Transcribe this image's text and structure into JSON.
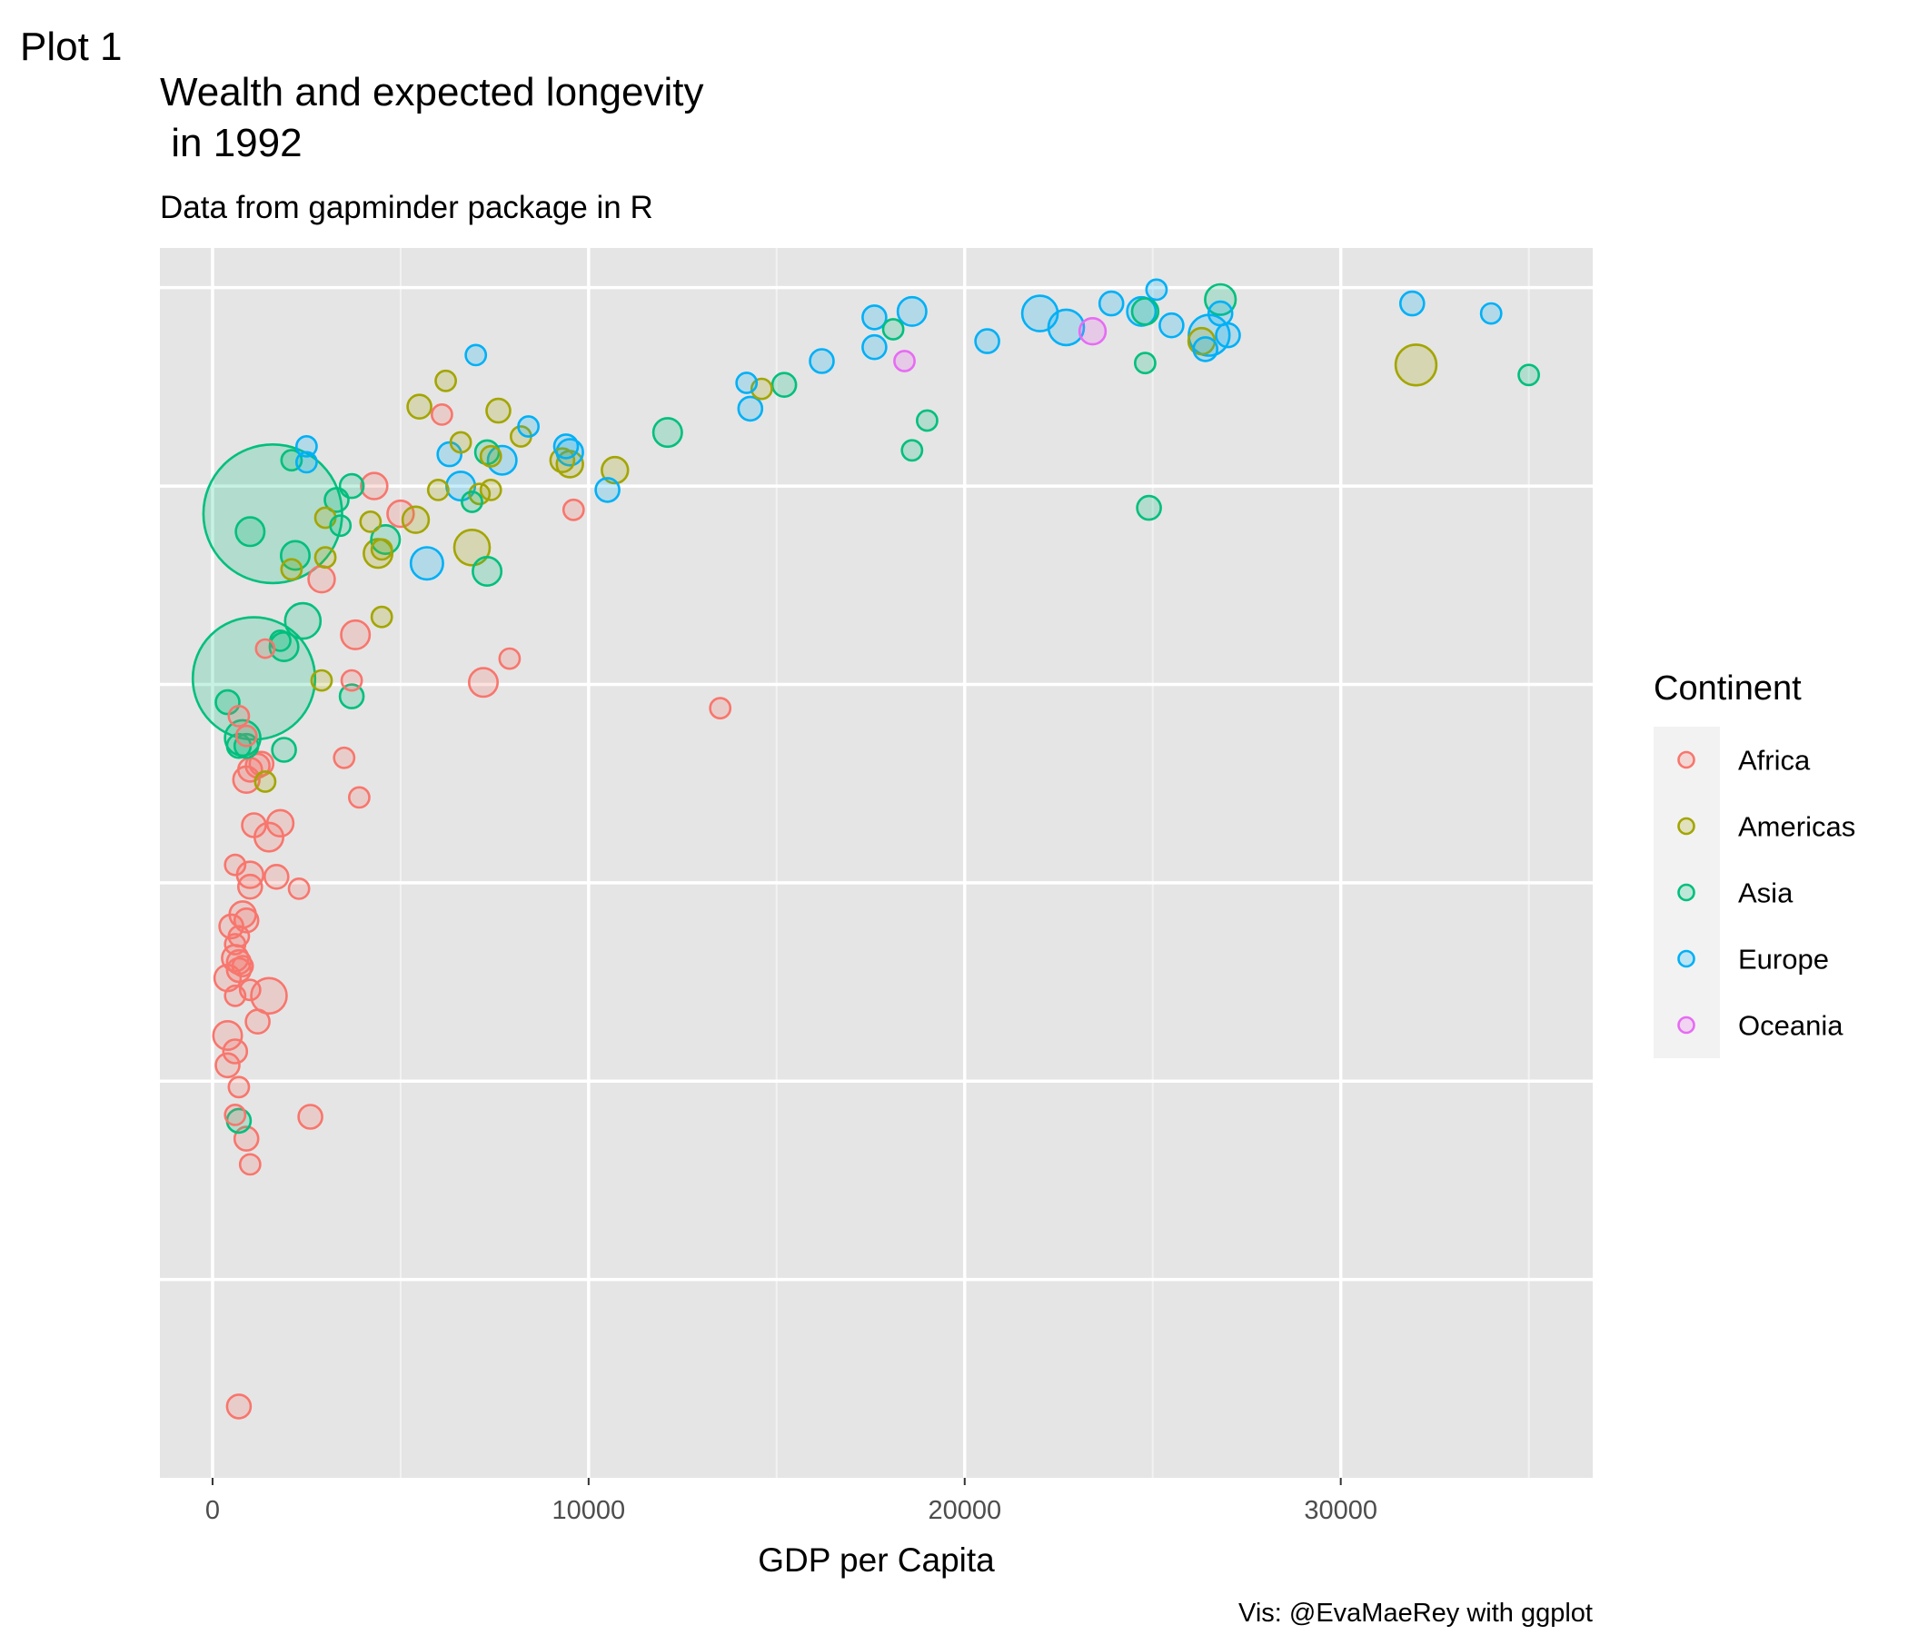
{
  "plot_tag": "Plot 1",
  "chart_data": {
    "type": "scatter",
    "title_line1": "Wealth and expected longevity",
    "title_line2": " in 1992",
    "subtitle": "Data from gapminder package in R",
    "xlabel": "GDP per Capita",
    "ylabel": "",
    "caption": "Vis: @EvaMaeRey with ggplot",
    "xlim": [
      -1400,
      36700
    ],
    "ylim": [
      20,
      82
    ],
    "x_ticks": [
      0,
      10000,
      20000,
      30000
    ],
    "x_tick_labels": [
      "0",
      "10000",
      "20000",
      "30000"
    ],
    "y_gridlines": [
      30,
      40,
      50,
      60,
      70,
      80
    ],
    "y_tick_labels_shown": false,
    "grid": true,
    "size_encodes": "population (millions, approximate)",
    "legend": {
      "title": "Continent",
      "position": "right",
      "entries": [
        "Africa",
        "Americas",
        "Asia",
        "Europe",
        "Oceania"
      ]
    },
    "colors": {
      "Africa": "#F8766D",
      "Americas": "#A3A500",
      "Asia": "#00BF7D",
      "Europe": "#00B0F6",
      "Oceania": "#E76BF3"
    },
    "series": [
      {
        "name": "Africa",
        "points": [
          [
            4300,
            70.0,
            15
          ],
          [
            6100,
            73.6,
            5
          ],
          [
            9600,
            68.8,
            5
          ],
          [
            2900,
            65.3,
            15
          ],
          [
            5000,
            68.6,
            15
          ],
          [
            3800,
            62.5,
            20
          ],
          [
            1400,
            61.8,
            3
          ],
          [
            3700,
            60.2,
            5
          ],
          [
            7200,
            60.1,
            20
          ],
          [
            7900,
            61.3,
            5
          ],
          [
            13500,
            58.8,
            5
          ],
          [
            700,
            58.4,
            5
          ],
          [
            900,
            57.4,
            5
          ],
          [
            1300,
            56.0,
            10
          ],
          [
            1200,
            55.9,
            10
          ],
          [
            1000,
            55.7,
            10
          ],
          [
            900,
            55.2,
            15
          ],
          [
            3500,
            56.3,
            5
          ],
          [
            3900,
            54.3,
            5
          ],
          [
            1100,
            52.9,
            10
          ],
          [
            1800,
            53.0,
            15
          ],
          [
            1500,
            52.3,
            20
          ],
          [
            600,
            50.9,
            5
          ],
          [
            1000,
            50.4,
            15
          ],
          [
            1700,
            50.3,
            10
          ],
          [
            1000,
            49.8,
            10
          ],
          [
            2300,
            49.7,
            5
          ],
          [
            800,
            48.4,
            15
          ],
          [
            900,
            48.1,
            10
          ],
          [
            500,
            47.8,
            10
          ],
          [
            700,
            47.3,
            5
          ],
          [
            600,
            46.9,
            5
          ],
          [
            600,
            46.2,
            15
          ],
          [
            700,
            46.0,
            10
          ],
          [
            800,
            45.8,
            5
          ],
          [
            700,
            45.6,
            10
          ],
          [
            400,
            45.2,
            15
          ],
          [
            1000,
            44.6,
            5
          ],
          [
            600,
            44.3,
            5
          ],
          [
            1500,
            44.3,
            40
          ],
          [
            1200,
            43.0,
            10
          ],
          [
            400,
            42.3,
            20
          ],
          [
            600,
            41.5,
            10
          ],
          [
            400,
            40.8,
            10
          ],
          [
            700,
            39.7,
            5
          ],
          [
            600,
            38.3,
            5
          ],
          [
            2600,
            38.2,
            10
          ],
          [
            900,
            37.1,
            10
          ],
          [
            1000,
            35.8,
            5
          ],
          [
            700,
            23.6,
            10
          ]
        ]
      },
      {
        "name": "Americas",
        "points": [
          [
            6200,
            75.3,
            5
          ],
          [
            5500,
            74.0,
            10
          ],
          [
            7600,
            73.8,
            10
          ],
          [
            8200,
            72.5,
            5
          ],
          [
            6600,
            72.2,
            5
          ],
          [
            9300,
            71.3,
            10
          ],
          [
            9500,
            71.1,
            15
          ],
          [
            7400,
            71.5,
            5
          ],
          [
            10700,
            70.8,
            15
          ],
          [
            6000,
            69.8,
            5
          ],
          [
            7100,
            69.6,
            5
          ],
          [
            7400,
            69.8,
            5
          ],
          [
            3000,
            68.4,
            5
          ],
          [
            4200,
            68.2,
            5
          ],
          [
            5400,
            68.3,
            15
          ],
          [
            6900,
            66.9,
            40
          ],
          [
            4400,
            66.6,
            20
          ],
          [
            4500,
            66.8,
            5
          ],
          [
            3000,
            66.4,
            5
          ],
          [
            2100,
            65.8,
            5
          ],
          [
            4500,
            63.4,
            5
          ],
          [
            2900,
            60.2,
            5
          ],
          [
            1400,
            55.1,
            5
          ],
          [
            14600,
            74.9,
            5
          ],
          [
            26300,
            77.3,
            15
          ],
          [
            32000,
            76.1,
            60
          ]
        ]
      },
      {
        "name": "Asia",
        "points": [
          [
            26800,
            79.4,
            25
          ],
          [
            24800,
            78.8,
            15
          ],
          [
            18100,
            77.9,
            5
          ],
          [
            15200,
            75.1,
            10
          ],
          [
            24800,
            76.2,
            5
          ],
          [
            35000,
            75.6,
            5
          ],
          [
            19000,
            73.3,
            5
          ],
          [
            12100,
            72.7,
            20
          ],
          [
            18600,
            71.8,
            5
          ],
          [
            7300,
            71.7,
            10
          ],
          [
            2100,
            71.3,
            5
          ],
          [
            3700,
            70.0,
            10
          ],
          [
            3300,
            69.3,
            10
          ],
          [
            3400,
            68.0,
            5
          ],
          [
            6900,
            69.2,
            5
          ],
          [
            1000,
            67.7,
            20
          ],
          [
            4600,
            67.3,
            20
          ],
          [
            2200,
            66.5,
            20
          ],
          [
            7300,
            65.7,
            20
          ],
          [
            24900,
            68.9,
            10
          ],
          [
            1600,
            68.6,
            1160
          ],
          [
            2400,
            63.2,
            40
          ],
          [
            1800,
            62.2,
            5
          ],
          [
            1900,
            61.9,
            20
          ],
          [
            1100,
            60.3,
            880
          ],
          [
            3700,
            59.4,
            10
          ],
          [
            400,
            59.1,
            10
          ],
          [
            700,
            56.9,
            10
          ],
          [
            900,
            56.9,
            10
          ],
          [
            800,
            57.3,
            40
          ],
          [
            1900,
            56.7,
            10
          ],
          [
            700,
            38.0,
            10
          ]
        ]
      },
      {
        "name": "Europe",
        "points": [
          [
            25100,
            79.9,
            5
          ],
          [
            23900,
            79.2,
            10
          ],
          [
            31900,
            79.2,
            10
          ],
          [
            24700,
            78.8,
            20
          ],
          [
            26800,
            78.7,
            10
          ],
          [
            18600,
            78.8,
            20
          ],
          [
            17600,
            78.5,
            10
          ],
          [
            22000,
            78.7,
            40
          ],
          [
            25500,
            78.1,
            10
          ],
          [
            22700,
            78.0,
            40
          ],
          [
            26500,
            77.6,
            60
          ],
          [
            27000,
            77.6,
            10
          ],
          [
            34000,
            78.7,
            5
          ],
          [
            26400,
            76.9,
            10
          ],
          [
            17600,
            77.0,
            10
          ],
          [
            20600,
            77.3,
            10
          ],
          [
            16200,
            76.3,
            10
          ],
          [
            7000,
            76.6,
            5
          ],
          [
            14200,
            75.2,
            5
          ],
          [
            14300,
            73.9,
            10
          ],
          [
            8400,
            73.0,
            5
          ],
          [
            9400,
            72.0,
            10
          ],
          [
            9500,
            71.7,
            15
          ],
          [
            7700,
            71.3,
            20
          ],
          [
            6300,
            71.6,
            10
          ],
          [
            2500,
            72.0,
            5
          ],
          [
            2500,
            71.2,
            5
          ],
          [
            6600,
            70.0,
            20
          ],
          [
            10500,
            69.8,
            10
          ],
          [
            5700,
            66.1,
            30
          ]
        ]
      },
      {
        "name": "Oceania",
        "points": [
          [
            23400,
            77.8,
            15
          ],
          [
            18400,
            76.3,
            5
          ]
        ]
      }
    ]
  }
}
